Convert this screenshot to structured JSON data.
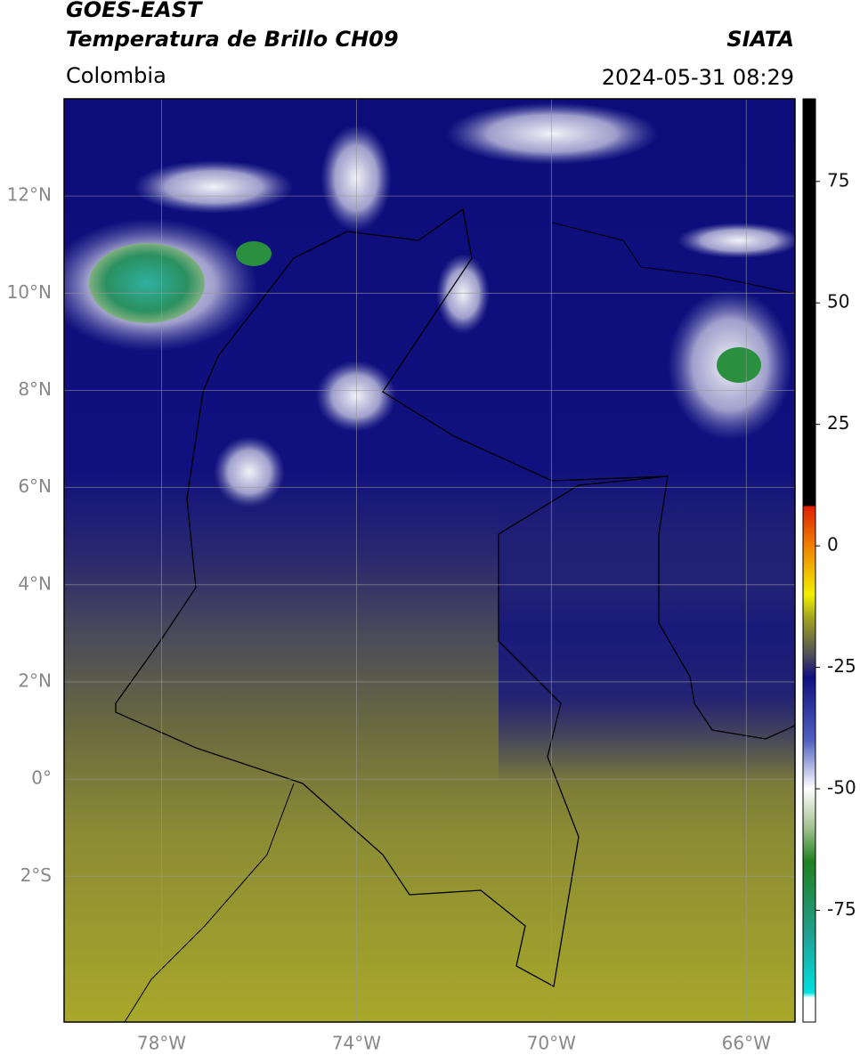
{
  "header": {
    "satellite": "GOES-EAST",
    "product": "Temperatura de Brillo CH09",
    "region": "Colombia",
    "source": "SIATA",
    "datetime": "2024-05-31 08:29"
  },
  "map": {
    "lon_range": [
      -80,
      -65
    ],
    "lat_range": [
      -5,
      14
    ],
    "lat_ticks": [
      {
        "value": 12,
        "label": "12°N"
      },
      {
        "value": 10,
        "label": "10°N"
      },
      {
        "value": 8,
        "label": "8°N"
      },
      {
        "value": 6,
        "label": "6°N"
      },
      {
        "value": 4,
        "label": "4°N"
      },
      {
        "value": 2,
        "label": "2°N"
      },
      {
        "value": 0,
        "label": "0°"
      },
      {
        "value": -2,
        "label": "2°S"
      }
    ],
    "lon_ticks": [
      {
        "value": -78,
        "label": "78°W"
      },
      {
        "value": -74,
        "label": "74°W"
      },
      {
        "value": -70,
        "label": "70°W"
      },
      {
        "value": -66,
        "label": "66°W"
      }
    ]
  },
  "colorbar": {
    "range": [
      -98,
      92
    ],
    "ticks": [
      75,
      50,
      25,
      0,
      -25,
      -50,
      -75
    ]
  }
}
